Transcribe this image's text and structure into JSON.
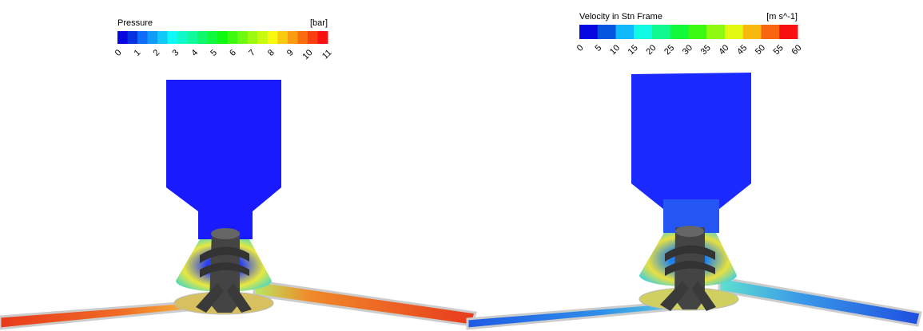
{
  "panels": [
    {
      "legend": {
        "title": "Pressure",
        "unit": "[bar]",
        "ticks": [
          0,
          1,
          2,
          3,
          4,
          5,
          6,
          7,
          8,
          9,
          10,
          11
        ]
      }
    },
    {
      "legend": {
        "title": "Velocity in Stn Frame",
        "unit": "[m s^-1]",
        "ticks": [
          0,
          5,
          10,
          15,
          20,
          25,
          30,
          35,
          40,
          45,
          50,
          55,
          60
        ]
      }
    }
  ]
}
